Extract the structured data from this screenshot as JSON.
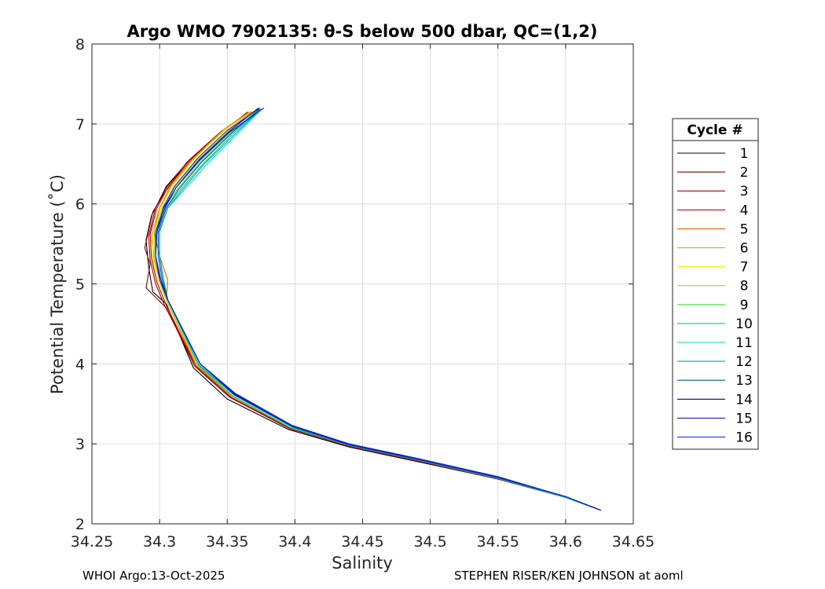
{
  "chart_data": {
    "type": "line",
    "title": "Argo WMO 7902135: θ-S below 500 dbar,  QC=(1,2)",
    "xlabel": "Salinity",
    "ylabel": "Potential Temperature (˚C)",
    "xlim": [
      34.25,
      34.65
    ],
    "ylim": [
      2,
      8
    ],
    "xticks": [
      "34.25",
      "34.3",
      "34.35",
      "34.4",
      "34.45",
      "34.5",
      "34.55",
      "34.6",
      "34.65"
    ],
    "yticks": [
      "2",
      "3",
      "4",
      "5",
      "6",
      "7",
      "8"
    ],
    "grid": true,
    "legend": {
      "title": "Cycle #",
      "placement": "right"
    },
    "series": [
      {
        "name": "1",
        "color": "#000000",
        "x": [
          34.626,
          34.6,
          34.55,
          34.49,
          34.44,
          34.395,
          34.35,
          34.325,
          34.305,
          34.295,
          34.292,
          34.29,
          34.294,
          34.305,
          34.322,
          34.345,
          34.368
        ],
        "y": [
          2.17,
          2.33,
          2.56,
          2.78,
          2.96,
          3.18,
          3.56,
          3.95,
          4.75,
          4.9,
          5.2,
          5.55,
          5.85,
          6.22,
          6.55,
          6.9,
          7.15
        ]
      },
      {
        "name": "2",
        "color": "#800000",
        "x": [
          34.626,
          34.6,
          34.55,
          34.49,
          34.44,
          34.396,
          34.352,
          34.326,
          34.305,
          34.29,
          34.293,
          34.289,
          34.295,
          34.303,
          34.32,
          34.343,
          34.365
        ],
        "y": [
          2.17,
          2.33,
          2.56,
          2.79,
          2.97,
          3.19,
          3.58,
          3.97,
          4.7,
          4.95,
          5.25,
          5.45,
          5.9,
          6.12,
          6.52,
          6.85,
          7.15
        ]
      },
      {
        "name": "3",
        "color": "#a00000",
        "x": [
          34.626,
          34.6,
          34.55,
          34.49,
          34.44,
          34.397,
          34.353,
          34.327,
          34.304,
          34.297,
          34.293,
          34.292,
          34.297,
          34.305,
          34.322,
          34.345,
          34.367
        ],
        "y": [
          2.17,
          2.33,
          2.56,
          2.79,
          2.97,
          3.19,
          3.58,
          3.97,
          4.72,
          5.0,
          5.3,
          5.6,
          5.95,
          6.2,
          6.55,
          6.9,
          7.15
        ]
      },
      {
        "name": "4",
        "color": "#cc0000",
        "x": [
          34.626,
          34.6,
          34.55,
          34.49,
          34.44,
          34.397,
          34.353,
          34.327,
          34.305,
          34.298,
          34.294,
          34.293,
          34.298,
          34.306,
          34.323,
          34.346,
          34.368
        ],
        "y": [
          2.17,
          2.33,
          2.56,
          2.79,
          2.97,
          3.19,
          3.58,
          3.97,
          4.73,
          5.02,
          5.32,
          5.62,
          5.95,
          6.2,
          6.55,
          6.9,
          7.15
        ]
      },
      {
        "name": "5",
        "color": "#e06000",
        "x": [
          34.626,
          34.6,
          34.55,
          34.49,
          34.44,
          34.397,
          34.353,
          34.327,
          34.305,
          34.306,
          34.3,
          34.296,
          34.3,
          34.308,
          34.324,
          34.345,
          34.366
        ],
        "y": [
          2.17,
          2.33,
          2.57,
          2.8,
          2.98,
          3.2,
          3.6,
          3.98,
          4.8,
          5.05,
          5.35,
          5.65,
          5.95,
          6.2,
          6.55,
          6.9,
          7.15
        ]
      },
      {
        "name": "6",
        "color": "#d4a000",
        "x": [
          34.626,
          34.6,
          34.55,
          34.49,
          34.44,
          34.397,
          34.353,
          34.328,
          34.305,
          34.3,
          34.296,
          34.294,
          34.3,
          34.308,
          34.325,
          34.347,
          34.368
        ],
        "y": [
          2.17,
          2.33,
          2.57,
          2.8,
          2.98,
          3.2,
          3.6,
          3.98,
          4.8,
          5.05,
          5.3,
          5.6,
          5.95,
          6.22,
          6.57,
          6.92,
          7.16
        ]
      },
      {
        "name": "7",
        "color": "#f0f000",
        "x": [
          34.626,
          34.6,
          34.55,
          34.49,
          34.44,
          34.397,
          34.354,
          34.328,
          34.305,
          34.299,
          34.295,
          34.295,
          34.301,
          34.309,
          34.326,
          34.348,
          34.369
        ],
        "y": [
          2.17,
          2.33,
          2.57,
          2.8,
          2.98,
          3.2,
          3.6,
          3.98,
          4.8,
          5.03,
          5.3,
          5.6,
          5.95,
          6.22,
          6.57,
          6.92,
          7.17
        ]
      },
      {
        "name": "8",
        "color": "#a0e000",
        "x": [
          34.626,
          34.6,
          34.55,
          34.49,
          34.44,
          34.397,
          34.354,
          34.328,
          34.305,
          34.3,
          34.296,
          34.296,
          34.302,
          34.311,
          34.328,
          34.35,
          34.371
        ],
        "y": [
          2.17,
          2.33,
          2.57,
          2.8,
          2.98,
          3.2,
          3.6,
          3.98,
          4.8,
          5.05,
          5.35,
          5.65,
          5.95,
          6.2,
          6.55,
          6.9,
          7.17
        ]
      },
      {
        "name": "9",
        "color": "#40e040",
        "x": [
          34.626,
          34.6,
          34.55,
          34.49,
          34.44,
          34.397,
          34.354,
          34.329,
          34.306,
          34.301,
          34.297,
          34.297,
          34.303,
          34.313,
          34.33,
          34.352,
          34.372
        ],
        "y": [
          2.17,
          2.33,
          2.57,
          2.8,
          2.98,
          3.2,
          3.6,
          3.98,
          4.8,
          5.05,
          5.35,
          5.65,
          5.95,
          6.18,
          6.52,
          6.88,
          7.17
        ]
      },
      {
        "name": "10",
        "color": "#00d080",
        "x": [
          34.626,
          34.6,
          34.55,
          34.49,
          34.44,
          34.397,
          34.354,
          34.329,
          34.306,
          34.302,
          34.299,
          34.299,
          34.305,
          34.315,
          34.332,
          34.354,
          34.374
        ],
        "y": [
          2.17,
          2.33,
          2.57,
          2.8,
          2.98,
          3.2,
          3.6,
          3.98,
          4.8,
          5.05,
          5.35,
          5.65,
          5.95,
          6.17,
          6.5,
          6.87,
          7.18
        ]
      },
      {
        "name": "11",
        "color": "#00d8d8",
        "x": [
          34.626,
          34.6,
          34.55,
          34.49,
          34.44,
          34.398,
          34.355,
          34.329,
          34.306,
          34.303,
          34.3,
          34.3,
          34.306,
          34.317,
          34.334,
          34.356,
          34.375
        ],
        "y": [
          2.17,
          2.33,
          2.57,
          2.8,
          2.98,
          3.21,
          3.61,
          3.99,
          4.8,
          5.05,
          5.35,
          5.65,
          5.95,
          6.15,
          6.48,
          6.85,
          7.18
        ]
      },
      {
        "name": "12",
        "color": "#00a0c0",
        "x": [
          34.626,
          34.6,
          34.55,
          34.49,
          34.44,
          34.398,
          34.355,
          34.329,
          34.306,
          34.303,
          34.3,
          34.3,
          34.306,
          34.316,
          34.333,
          34.355,
          34.375
        ],
        "y": [
          2.17,
          2.33,
          2.57,
          2.8,
          2.98,
          3.21,
          3.61,
          3.99,
          4.8,
          5.05,
          5.35,
          5.65,
          5.95,
          6.16,
          6.5,
          6.86,
          7.19
        ]
      },
      {
        "name": "13",
        "color": "#006080",
        "x": [
          34.626,
          34.6,
          34.55,
          34.49,
          34.44,
          34.398,
          34.355,
          34.33,
          34.306,
          34.302,
          34.299,
          34.299,
          34.305,
          34.314,
          34.331,
          34.353,
          34.374
        ],
        "y": [
          2.17,
          2.34,
          2.58,
          2.81,
          2.99,
          3.22,
          3.62,
          4.0,
          4.8,
          5.05,
          5.35,
          5.65,
          5.95,
          6.18,
          6.52,
          6.88,
          7.19
        ]
      },
      {
        "name": "14",
        "color": "#000080",
        "x": [
          34.626,
          34.6,
          34.55,
          34.49,
          34.44,
          34.398,
          34.355,
          34.33,
          34.306,
          34.301,
          34.297,
          34.298,
          34.304,
          34.312,
          34.329,
          34.351,
          34.373
        ],
        "y": [
          2.17,
          2.34,
          2.58,
          2.81,
          2.99,
          3.22,
          3.62,
          4.0,
          4.8,
          5.05,
          5.35,
          5.65,
          5.95,
          6.2,
          6.55,
          6.9,
          7.2
        ]
      },
      {
        "name": "15",
        "color": "#2020b0",
        "x": [
          34.626,
          34.6,
          34.55,
          34.49,
          34.44,
          34.398,
          34.356,
          34.33,
          34.306,
          34.301,
          34.297,
          34.298,
          34.303,
          34.311,
          34.328,
          34.35,
          34.374
        ],
        "y": [
          2.17,
          2.34,
          2.58,
          2.81,
          2.99,
          3.22,
          3.62,
          4.0,
          4.8,
          5.05,
          5.35,
          5.65,
          5.97,
          6.22,
          6.57,
          6.92,
          7.2
        ]
      },
      {
        "name": "16",
        "color": "#0020e0",
        "x": [
          34.626,
          34.6,
          34.55,
          34.49,
          34.44,
          34.398,
          34.356,
          34.33,
          34.306,
          34.3,
          34.297,
          34.297,
          34.303,
          34.312,
          34.33,
          34.352,
          34.377
        ],
        "y": [
          2.17,
          2.34,
          2.59,
          2.82,
          3.0,
          3.23,
          3.63,
          4.0,
          4.8,
          5.05,
          5.35,
          5.65,
          5.95,
          6.2,
          6.55,
          6.9,
          7.2
        ]
      }
    ]
  },
  "footer": {
    "left": "WHOI Argo:13-Oct-2025",
    "right": "STEPHEN RISER/KEN JOHNSON at aoml"
  }
}
